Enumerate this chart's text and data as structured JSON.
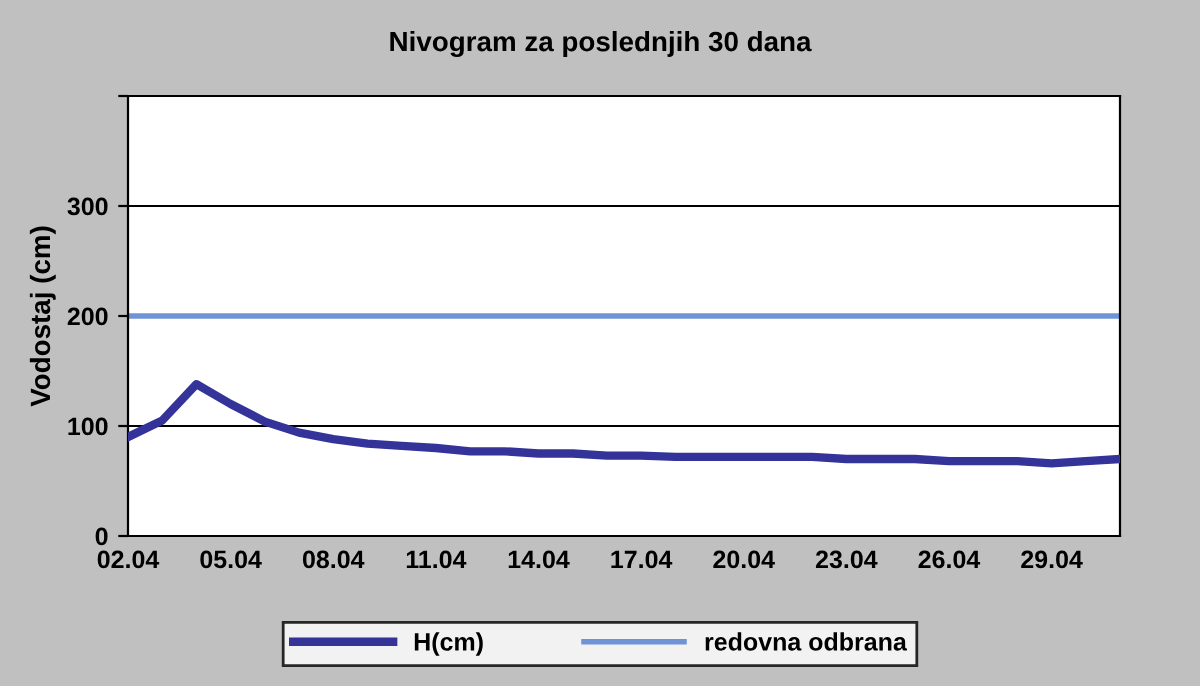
{
  "chart_data": {
    "type": "line",
    "title": "Nivogram za poslednjih 30 dana",
    "ylabel": "Vodostaj (cm)",
    "categories": [
      "02.04",
      null,
      null,
      "05.04",
      null,
      null,
      "08.04",
      null,
      null,
      "11.04",
      null,
      null,
      "14.04",
      null,
      null,
      "17.04",
      null,
      null,
      "20.04",
      null,
      null,
      "23.04",
      null,
      null,
      "26.04",
      null,
      null,
      "29.04",
      null,
      null
    ],
    "series": [
      {
        "name": "H(cm)",
        "color": "#333399",
        "values": [
          90,
          105,
          138,
          120,
          104,
          94,
          88,
          84,
          82,
          80,
          77,
          77,
          75,
          75,
          73,
          73,
          72,
          72,
          72,
          72,
          72,
          70,
          70,
          70,
          68,
          68,
          68,
          66,
          68,
          70
        ]
      }
    ],
    "ylim": [
      0,
      400
    ],
    "yticks": [
      0,
      100,
      200,
      300,
      {
        "value": 400,
        "label": null
      }
    ],
    "ref_lines": [
      {
        "axis": "y",
        "value": 200,
        "label": "redovna odbrana",
        "color": "#6f93d6"
      }
    ],
    "grid": "y",
    "legend": "bottom",
    "marker": "none",
    "line_style": "solid"
  }
}
